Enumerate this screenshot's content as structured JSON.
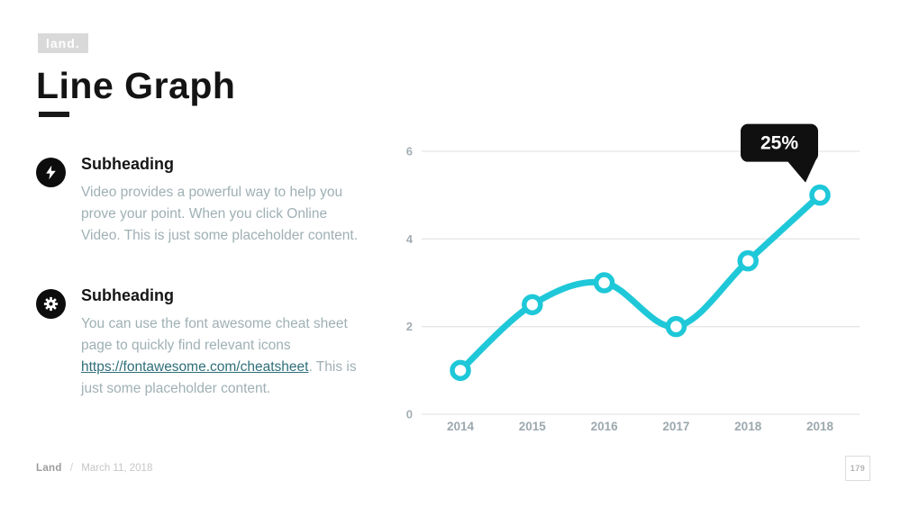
{
  "slide": {
    "badge_label": "land.",
    "title": "Line Graph",
    "footer": {
      "brand": "Land",
      "separator": "/",
      "date": "March 11, 2018",
      "page_number": "179"
    }
  },
  "content": {
    "items": [
      {
        "icon": "lightning-bolt",
        "heading": "Subheading",
        "body": "Video provides a powerful way to help you prove your point. When you click Online Video. This is just some placeholder content."
      },
      {
        "icon": "gear",
        "heading": "Subheading",
        "body_before": "You can use the font awesome cheat sheet page to quickly find relevant icons ",
        "link_text": "https://fontawesome.com/cheatsheet",
        "body_after": ". This is just some placeholder content."
      }
    ]
  },
  "chart_data": {
    "type": "line",
    "title": "",
    "categories": [
      "2014",
      "2015",
      "2016",
      "2017",
      "2018",
      "2018"
    ],
    "series": [
      {
        "name": "values",
        "values": [
          1,
          2.5,
          3,
          2,
          3.5,
          5
        ]
      }
    ],
    "ylim": [
      0,
      6
    ],
    "yticks": [
      0,
      2,
      4,
      6
    ],
    "grid": true,
    "legend": false,
    "annotation": {
      "text": "25%",
      "point_index": 5
    },
    "colors": {
      "line": "#1EC8D8",
      "point_fill": "#FFFFFF",
      "grid": "#E5E5E5",
      "tooltip_bg": "#101010",
      "tooltip_text": "#FFFFFF"
    }
  }
}
